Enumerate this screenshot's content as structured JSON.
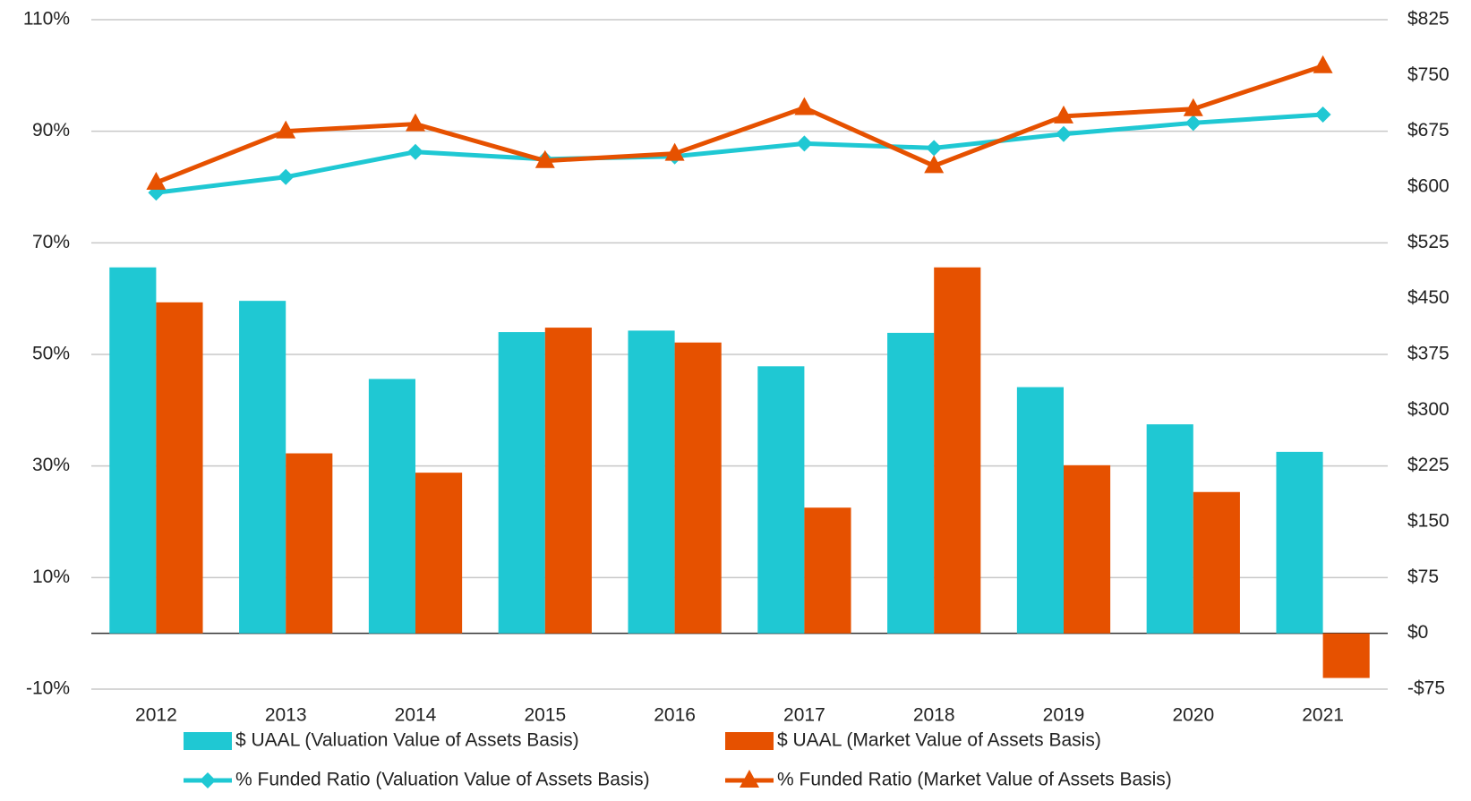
{
  "chart_data": {
    "type": "bar",
    "categories": [
      "2012",
      "2013",
      "2014",
      "2015",
      "2016",
      "2017",
      "2018",
      "2019",
      "2020",
      "2021"
    ],
    "series": [
      {
        "name": "$ UAAL (Valuation Value of Assets Basis)",
        "type": "bar",
        "axis": "y2",
        "color": "#1fc8d3",
        "values": [
          492,
          447,
          342,
          405,
          407,
          359,
          404,
          331,
          281,
          244
        ]
      },
      {
        "name": "$ UAAL (Market Value of Assets Basis)",
        "type": "bar",
        "axis": "y2",
        "color": "#e65100",
        "values": [
          445,
          242,
          216,
          411,
          391,
          169,
          492,
          226,
          190,
          -60
        ]
      },
      {
        "name": "% Funded Ratio (Valuation Value of Assets Basis)",
        "type": "line",
        "marker": "diamond",
        "color": "#1fc8d3",
        "values": [
          79.0,
          81.8,
          86.3,
          85.0,
          85.5,
          87.8,
          87.0,
          89.5,
          91.5,
          93.0
        ]
      },
      {
        "name": "% Funded Ratio (Market Value of Assets Basis)",
        "type": "line",
        "marker": "triangle",
        "color": "#e65100",
        "values": [
          80.8,
          90.0,
          91.3,
          84.7,
          86.0,
          94.2,
          83.8,
          92.7,
          94.0,
          101.7
        ]
      }
    ],
    "ylim": [
      -10,
      110
    ],
    "yticks": [
      {
        "value": -10,
        "label": "-10%"
      },
      {
        "value": 10,
        "label": "10%"
      },
      {
        "value": 30,
        "label": "30%"
      },
      {
        "value": 50,
        "label": "50%"
      },
      {
        "value": 70,
        "label": "70%"
      },
      {
        "value": 90,
        "label": "90%"
      },
      {
        "value": 110,
        "label": "110%"
      }
    ],
    "y2lim": [
      -75,
      825
    ],
    "y2ticks": [
      {
        "value": -75,
        "label": "-$75"
      },
      {
        "value": 0,
        "label": "$0"
      },
      {
        "value": 75,
        "label": "$75"
      },
      {
        "value": 150,
        "label": "$150"
      },
      {
        "value": 225,
        "label": "$225"
      },
      {
        "value": 300,
        "label": "$300"
      },
      {
        "value": 375,
        "label": "$375"
      },
      {
        "value": 450,
        "label": "$450"
      },
      {
        "value": 525,
        "label": "$525"
      },
      {
        "value": 600,
        "label": "$600"
      },
      {
        "value": 675,
        "label": "$675"
      },
      {
        "value": 750,
        "label": "$750"
      },
      {
        "value": 825,
        "label": "$825"
      }
    ],
    "grid": true
  }
}
